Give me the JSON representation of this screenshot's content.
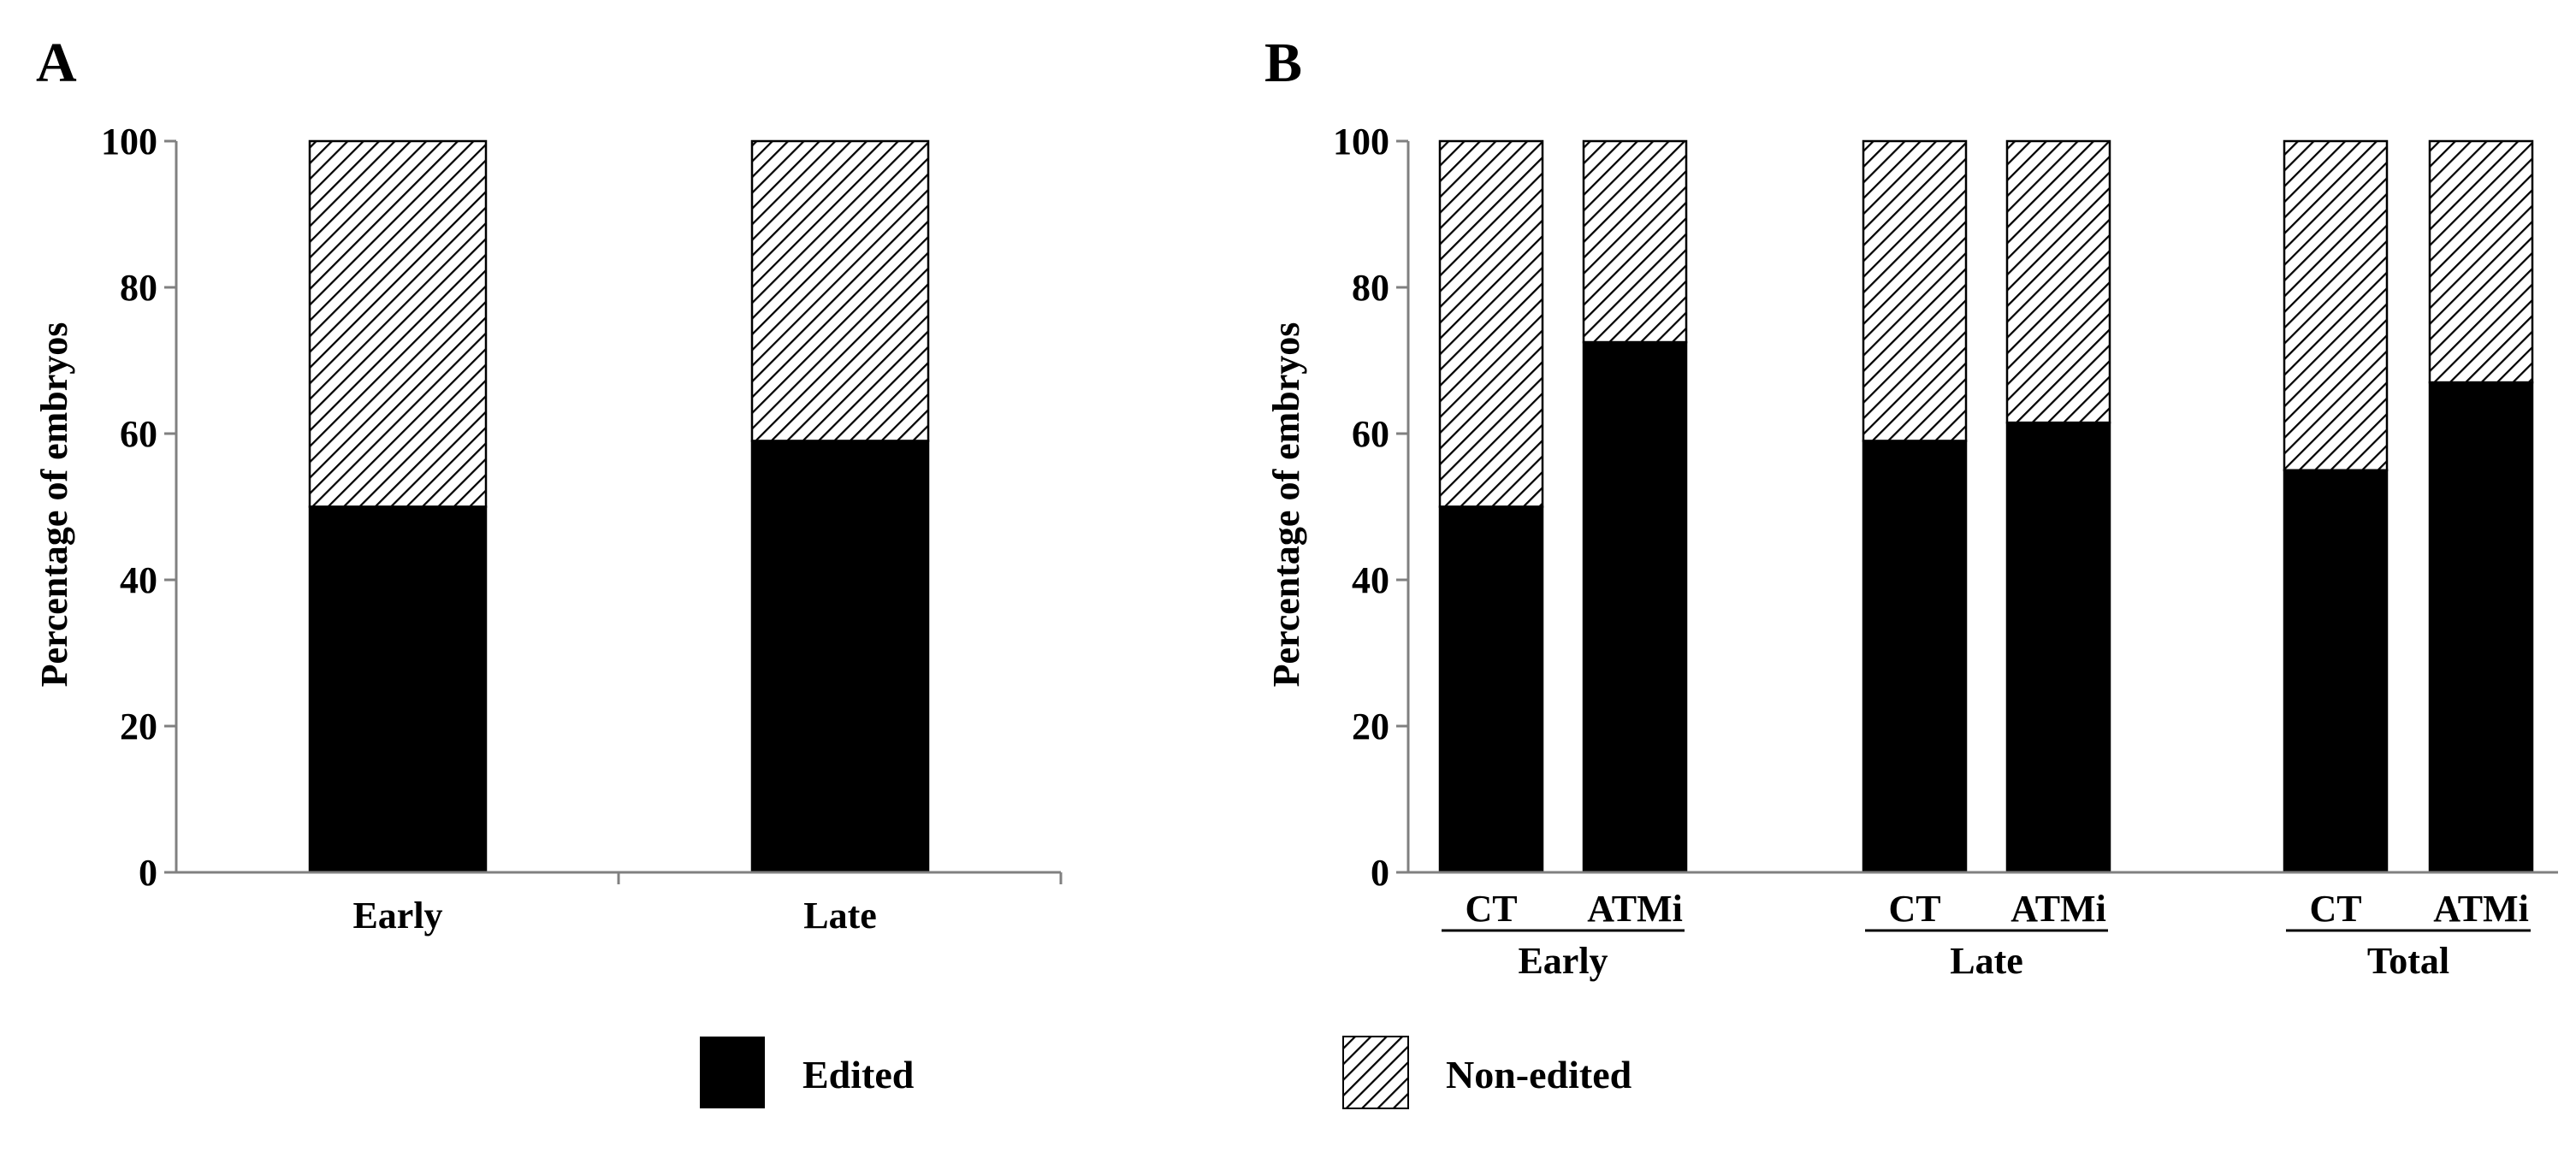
{
  "colors": {
    "edited": "#000000",
    "non_edited_pattern": "diagonal-hatch",
    "axis": "#808080"
  },
  "legend": {
    "placement": "bottom-center",
    "items": [
      {
        "label": "Edited",
        "swatch": "solid-black"
      },
      {
        "label": "Non-edited",
        "swatch": "hatched"
      }
    ]
  },
  "chart_data": [
    {
      "panel_label": "A",
      "type": "bar",
      "stacked": true,
      "percent": true,
      "categories": [
        "Early",
        "Late"
      ],
      "series": [
        {
          "name": "Edited",
          "values": [
            50,
            59
          ]
        },
        {
          "name": "Non-edited",
          "values": [
            50,
            41
          ]
        }
      ],
      "ylabel": "Percentage of embryos",
      "xlabel": "",
      "ylim": [
        0,
        100
      ],
      "yticks": [
        "0",
        "20",
        "40",
        "60",
        "80",
        "100"
      ],
      "grid": false
    },
    {
      "panel_label": "B",
      "type": "bar",
      "stacked": true,
      "percent": true,
      "groups": [
        {
          "label": "Early",
          "categories": [
            "CT",
            "ATMi"
          ]
        },
        {
          "label": "Late",
          "categories": [
            "CT",
            "ATMi"
          ]
        },
        {
          "label": "Total",
          "categories": [
            "CT",
            "ATMi"
          ]
        }
      ],
      "series": [
        {
          "name": "Edited",
          "values": [
            50,
            72.5,
            59,
            61.5,
            55,
            67
          ]
        },
        {
          "name": "Non-edited",
          "values": [
            50,
            27.5,
            41,
            38.5,
            45,
            33
          ]
        }
      ],
      "ylabel": "Percentage of embryos",
      "xlabel": "",
      "ylim": [
        0,
        100
      ],
      "yticks": [
        "0",
        "20",
        "40",
        "60",
        "80",
        "100"
      ],
      "grid": false
    }
  ]
}
